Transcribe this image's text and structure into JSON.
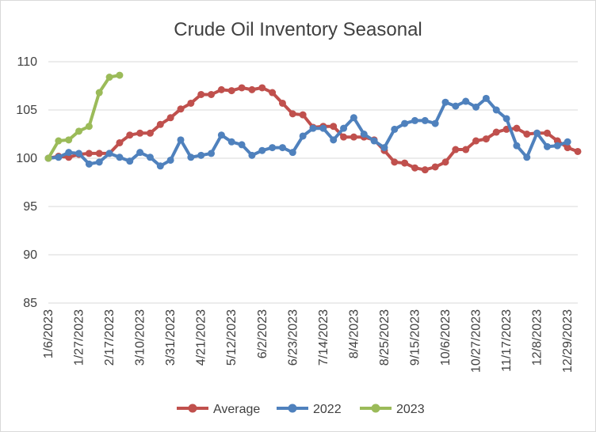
{
  "chart_data": {
    "type": "line",
    "title": "Crude Oil Inventory Seasonal",
    "xlabel": "",
    "ylabel": "",
    "ylim": [
      85,
      110
    ],
    "yticks": [
      85,
      90,
      95,
      100,
      105,
      110
    ],
    "grid": true,
    "legend_position": "bottom",
    "xticks": [
      "1/6/2023",
      "1/27/2023",
      "2/17/2023",
      "3/10/2023",
      "3/31/2023",
      "4/21/2023",
      "5/12/2023",
      "6/2/2023",
      "6/23/2023",
      "7/14/2023",
      "8/4/2023",
      "8/25/2023",
      "9/15/2023",
      "10/6/2023",
      "10/27/2023",
      "11/17/2023",
      "12/8/2023",
      "12/29/2023"
    ],
    "series": [
      {
        "name": "Average",
        "color": "#c0504d",
        "values": [
          100.0,
          100.2,
          100.1,
          100.4,
          100.5,
          100.5,
          100.5,
          101.6,
          102.4,
          102.6,
          102.6,
          103.5,
          104.2,
          105.1,
          105.7,
          106.6,
          106.6,
          107.1,
          107.0,
          107.3,
          107.1,
          107.3,
          106.8,
          105.7,
          104.6,
          104.5,
          103.2,
          103.3,
          103.3,
          102.2,
          102.2,
          102.2,
          101.9,
          100.8,
          99.6,
          99.5,
          99.0,
          98.8,
          99.1,
          99.6,
          100.9,
          100.9,
          101.8,
          102.0,
          102.7,
          103.0,
          103.1,
          102.5,
          102.6,
          102.6,
          101.8,
          101.1,
          100.7
        ]
      },
      {
        "name": "2022",
        "color": "#4f81bd",
        "values": [
          100.0,
          100.1,
          100.6,
          100.5,
          99.4,
          99.6,
          100.5,
          100.1,
          99.7,
          100.6,
          100.1,
          99.2,
          99.8,
          101.9,
          100.1,
          100.3,
          100.5,
          102.4,
          101.7,
          101.4,
          100.3,
          100.8,
          101.1,
          101.1,
          100.6,
          102.3,
          103.1,
          103.1,
          101.9,
          103.1,
          104.2,
          102.5,
          101.8,
          101.1,
          103.0,
          103.6,
          103.9,
          103.9,
          103.6,
          105.8,
          105.4,
          105.9,
          105.3,
          106.2,
          105.0,
          104.1,
          101.3,
          100.1,
          102.6,
          101.2,
          101.3,
          101.7
        ]
      },
      {
        "name": "2023",
        "color": "#9bbb59",
        "values": [
          100.0,
          101.8,
          101.9,
          102.8,
          103.3,
          106.8,
          108.4,
          108.6
        ]
      }
    ]
  }
}
